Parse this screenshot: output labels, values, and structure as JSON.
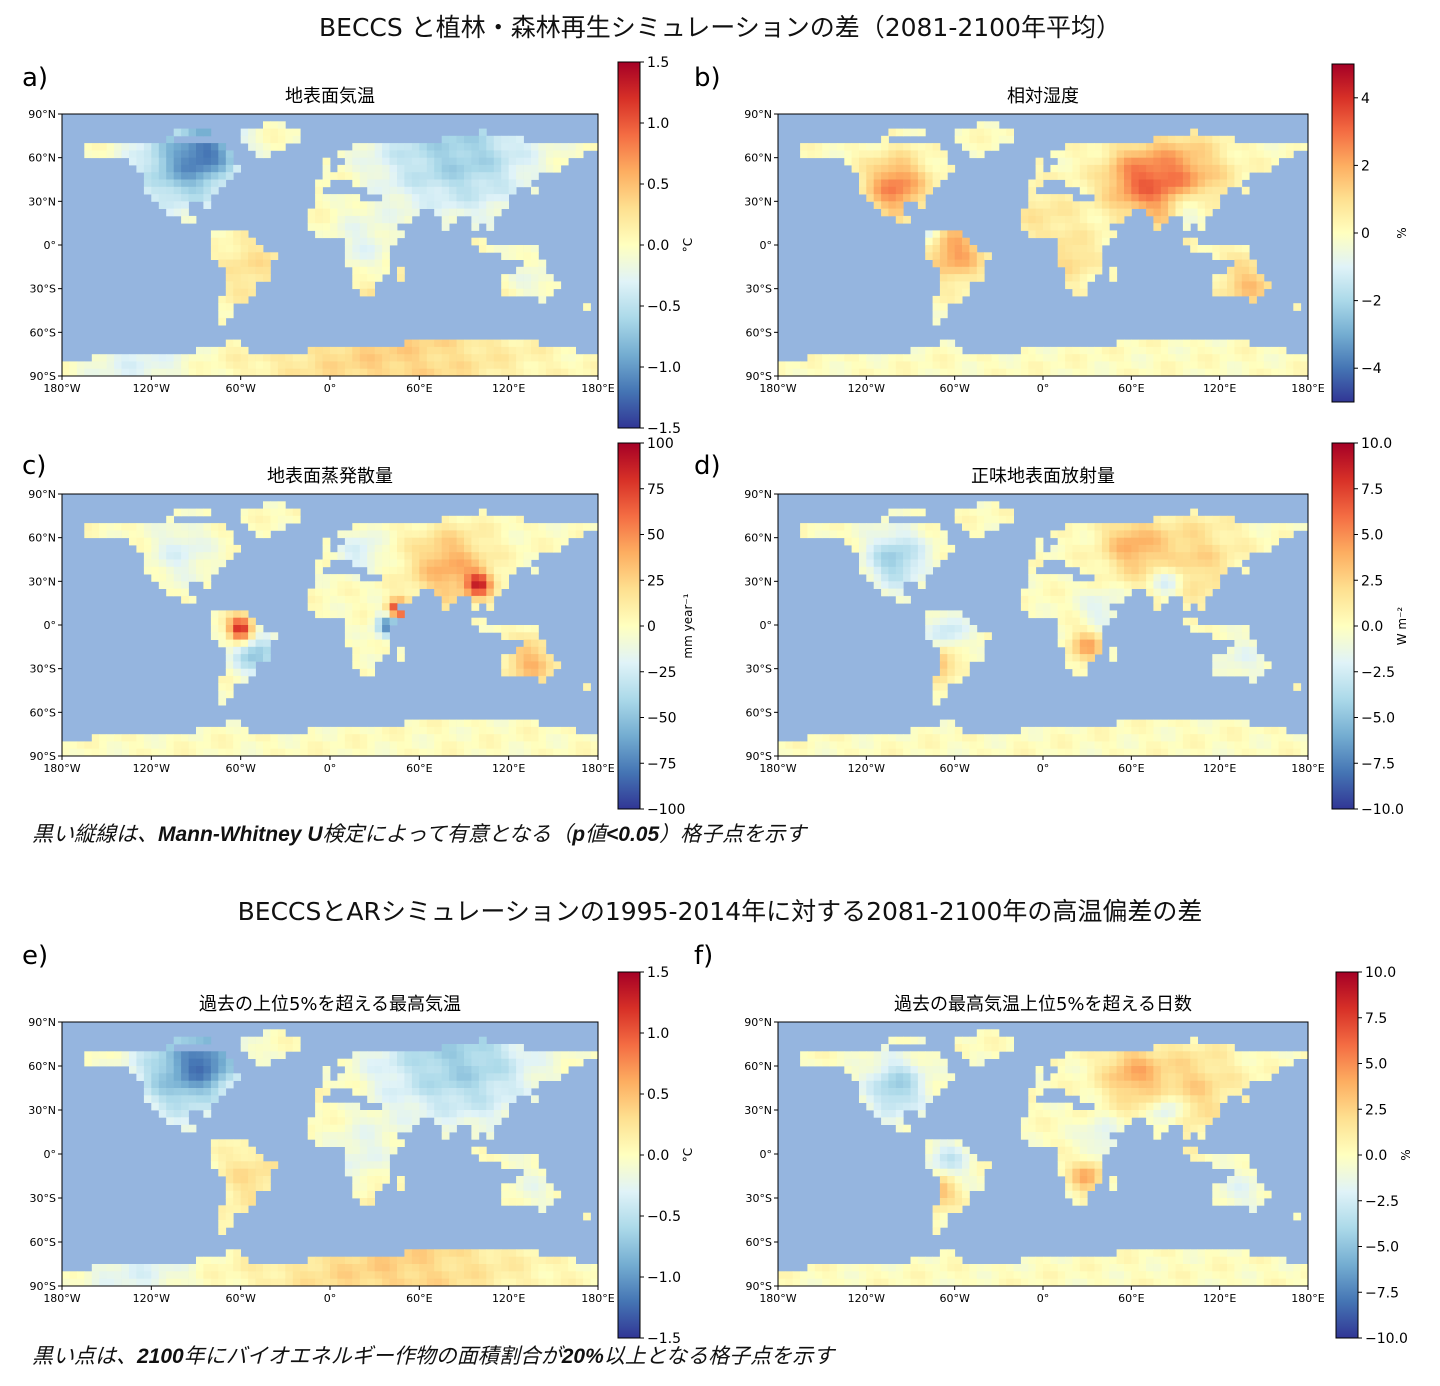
{
  "titles": {
    "top": "BECCS と植林・森林再生シミュレーションの差（2081-2100年平均）",
    "bottom": "BECCSとARシミュレーションの1995-2014年に対する2081-2100年の高温偏差の差"
  },
  "notes": {
    "top_pre": "黒い縦線は、",
    "top_bold1": "Mann-Whitney U",
    "top_mid": "検定によって有意となる（",
    "top_bold2": "p",
    "top_mid2": "値",
    "top_bold3": "<0.05",
    "top_post": "）格子点を示す",
    "bottom_pre": "黒い点は、",
    "bottom_bold1": "2100",
    "bottom_mid": "年にバイオエネルギー作物の面積割合が",
    "bottom_bold2": "20%",
    "bottom_post": "以上となる格子点を示す"
  },
  "lat_ticks": [
    "90°N",
    "60°N",
    "30°N",
    "0°",
    "30°S",
    "60°S",
    "90°S"
  ],
  "lon_ticks": [
    "180°W",
    "120°W",
    "60°W",
    "0°",
    "60°E",
    "120°E",
    "180°E"
  ],
  "colors": {
    "ocean": "#95b5df",
    "land_neutral": "#fdf5b8",
    "cmap": [
      "#313695",
      "#4575b4",
      "#74add1",
      "#abd9e9",
      "#e0f3f8",
      "#ffffbf",
      "#fee090",
      "#fdae61",
      "#f46d43",
      "#d73027",
      "#a50026"
    ]
  },
  "chart_data": [
    {
      "id": "a",
      "type": "heatmap",
      "letter": "a)",
      "title": "地表面気温",
      "colorbar": {
        "min": -1.5,
        "max": 1.5,
        "ticks": [
          "1.5",
          "1.0",
          "0.5",
          "0.0",
          "−0.5",
          "−1.0",
          "−1.5"
        ],
        "label": "°C"
      },
      "land_anomaly": "cool-north"
    },
    {
      "id": "b",
      "type": "heatmap",
      "letter": "b)",
      "title": "相対湿度",
      "colorbar": {
        "min": -5,
        "max": 5,
        "ticks": [
          "4",
          "2",
          "0",
          "−2",
          "−4"
        ],
        "label": "%"
      },
      "land_anomaly": "warm-midlat"
    },
    {
      "id": "c",
      "type": "heatmap",
      "letter": "c)",
      "title": "地表面蒸発散量",
      "colorbar": {
        "min": -100,
        "max": 100,
        "ticks": [
          "100",
          "75",
          "50",
          "25",
          "0",
          "−25",
          "−50",
          "−75",
          "−100"
        ],
        "label": "mm year⁻¹"
      },
      "land_anomaly": "mixed"
    },
    {
      "id": "d",
      "type": "heatmap",
      "letter": "d)",
      "title": "正味地表面放射量",
      "colorbar": {
        "min": -10,
        "max": 10,
        "ticks": [
          "10.0",
          "7.5",
          "5.0",
          "2.5",
          "0.0",
          "−2.5",
          "−5.0",
          "−7.5",
          "−10.0"
        ],
        "label": "W m⁻²"
      },
      "land_anomaly": "warm-mixed"
    },
    {
      "id": "e",
      "type": "heatmap",
      "letter": "e)",
      "title": "過去の上位5%を超える最高気温",
      "colorbar": {
        "min": -1.5,
        "max": 1.5,
        "ticks": [
          "1.5",
          "1.0",
          "0.5",
          "0.0",
          "−0.5",
          "−1.0",
          "−1.5"
        ],
        "label": "°C"
      },
      "land_anomaly": "cool-north"
    },
    {
      "id": "f",
      "type": "heatmap",
      "letter": "f)",
      "title": "過去の最高気温上位5%を超える日数",
      "colorbar": {
        "min": -10,
        "max": 10,
        "ticks": [
          "10.0",
          "7.5",
          "5.0",
          "2.5",
          "0.0",
          "−2.5",
          "−5.0",
          "−7.5",
          "−10.0"
        ],
        "label": "%"
      },
      "land_anomaly": "warm-mixed"
    }
  ]
}
